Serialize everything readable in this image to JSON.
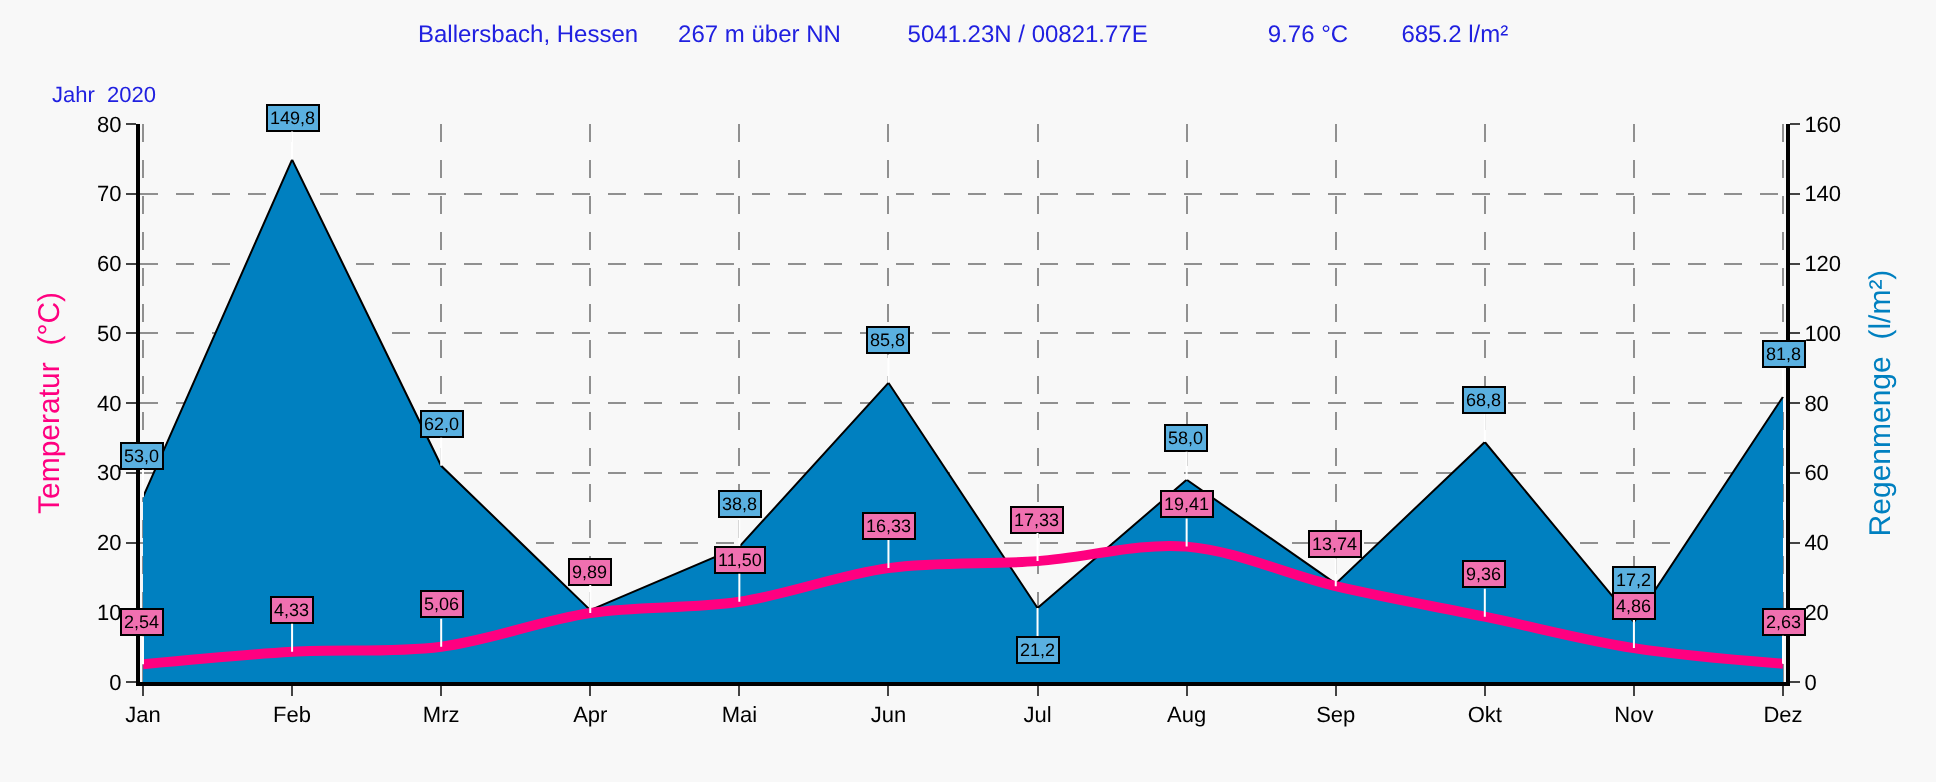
{
  "chart_data": {
    "type": "line",
    "title": "Ballersbach, Hessen      267 m über NN          5041.23N / 00821.77E                  9.76 °C        685.2 l/m²",
    "subtitle": "Jahr  2020",
    "ylabel": "Temperatur  (°C)",
    "y2label": "Regenmenge  (l/m²)",
    "categories": [
      "Jan",
      "Feb",
      "Mrz",
      "Apr",
      "Mai",
      "Jun",
      "Jul",
      "Aug",
      "Sep",
      "Okt",
      "Nov",
      "Dez"
    ],
    "series": [
      {
        "type": "area",
        "axis": "y2",
        "color": "#0080c0",
        "values": [
          53.0,
          149.8,
          62.0,
          20.6,
          38.8,
          85.8,
          21.2,
          58.0,
          28.2,
          68.8,
          17.2,
          81.8
        ],
        "value_labels": [
          "53,0",
          "149,8",
          "62,0",
          null,
          "38,8",
          "85,8",
          "21,2",
          "58,0",
          null,
          "68,8",
          "17,2",
          "81,8"
        ]
      },
      {
        "color": "#ff0080",
        "values": [
          2.54,
          4.33,
          5.06,
          9.89,
          11.5,
          16.33,
          17.33,
          19.41,
          13.74,
          9.36,
          4.86,
          2.63
        ],
        "value_labels": [
          "2,54",
          "4,33",
          "5,06",
          "9,89",
          "11,50",
          "16,33",
          "17,33",
          "19,41",
          "13,74",
          "9,36",
          "4,86",
          "2,63"
        ]
      }
    ],
    "ylim": [
      0,
      80
    ],
    "yticks": [
      0,
      10,
      20,
      30,
      40,
      50,
      60,
      70,
      80
    ],
    "y2lim": [
      0,
      160
    ],
    "y2ticks": [
      0,
      20,
      40,
      60,
      80,
      100,
      120,
      140,
      160
    ],
    "grid": true,
    "marker": "none",
    "line_style": "solid"
  }
}
